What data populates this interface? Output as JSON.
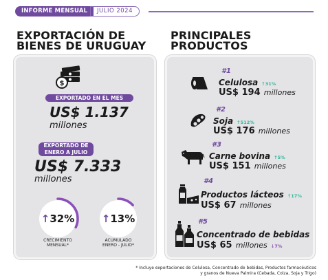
{
  "header": {
    "badge": "INFORME MENSUAL",
    "date": "JULIO 2024"
  },
  "left": {
    "title_line1": "EXPORTACIÓN DE",
    "title_line2": "BIENES DE URUGUAY",
    "month": {
      "label": "EXPORTADO EN EL MES",
      "value": "US$ 1.137",
      "unit": "millones"
    },
    "ytd": {
      "label_line1": "EXPORTADO DE",
      "label_line2": "ENERO A JULIO",
      "value": "US$ 7.333",
      "unit": "millones"
    },
    "gauges": [
      {
        "arrow": "↑",
        "value": "32%",
        "fraction": 0.32,
        "caption_line1": "CRECIMIENTO",
        "caption_line2": "MENSUAL*"
      },
      {
        "arrow": "↑",
        "value": "13%",
        "fraction": 0.13,
        "caption_line1": "ACUMULADO",
        "caption_line2": "ENERO - JULIO*"
      }
    ]
  },
  "right": {
    "title_line1": "PRINCIPALES",
    "title_line2": "PRODUCTOS",
    "products": [
      {
        "rank": "#1",
        "name": "Celulosa",
        "change": "↑31%",
        "value": "US$ 194",
        "unit": "millones",
        "icon": "paper-roll-icon"
      },
      {
        "rank": "#2",
        "name": "Soja",
        "change": "↑512%",
        "value": "US$ 176",
        "unit": "millones",
        "icon": "soybean-icon"
      },
      {
        "rank": "#3",
        "name": "Carne bovina",
        "change": "↑5%",
        "value": "US$ 151",
        "unit": "millones",
        "icon": "cow-icon"
      },
      {
        "rank": "#4",
        "name": "Productos lácteos",
        "change": "↑17%",
        "value": "US$ 67",
        "unit": "millones",
        "icon": "dairy-icon"
      },
      {
        "rank": "#5",
        "name": "Concentrado de bebidas",
        "change": "↓7%",
        "value": "US$ 65",
        "unit": "millones",
        "icon": "bottles-icon"
      }
    ]
  },
  "footnote": {
    "line1": "* Incluye exportaciones de Celulosa, Concentrado de bebidas, Productos farmacéuticos",
    "line2": "y granos de Nueva Palmira (Cebada, Colza, Soja y Trigo)"
  },
  "colors": {
    "accent": "#6f4a9e",
    "up": "#2fb89a",
    "down": "#8a4fb8",
    "panel": "#e4e3e6"
  }
}
